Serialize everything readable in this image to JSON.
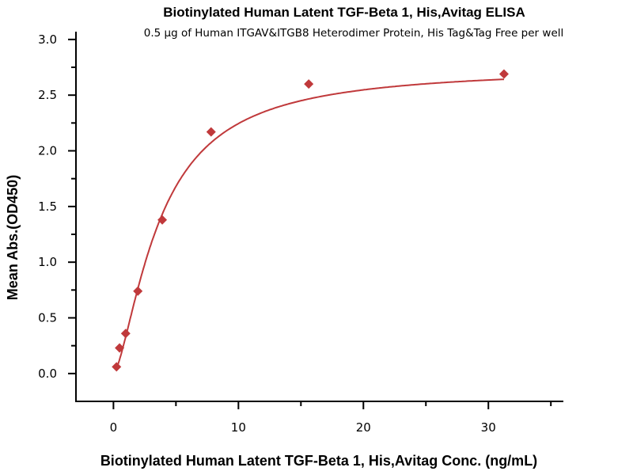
{
  "chart_data": {
    "type": "scatter",
    "title": "Biotinylated Human Latent TGF-Beta 1, His,Avitag ELISA",
    "subtitle": "0.5 µg of Human ITGAV&ITGB8 Heterodimer Protein, His Tag&Tag Free per well",
    "xlabel": "Biotinylated Human Latent TGF-Beta 1, His,Avitag Conc. (ng/mL)",
    "ylabel": "Mean Abs.(OD450)",
    "xlim": [
      -3,
      36
    ],
    "ylim": [
      -0.25,
      3.07
    ],
    "xticks": [
      "0",
      "10",
      "20",
      "30"
    ],
    "xtick_values": [
      0,
      10,
      20,
      30
    ],
    "xminor_values": [
      5,
      15,
      25,
      35
    ],
    "yticks": [
      "0.0",
      "0.5",
      "1.0",
      "1.5",
      "2.0",
      "2.5",
      "3.0"
    ],
    "ytick_values": [
      0,
      0.5,
      1.0,
      1.5,
      2.0,
      2.5,
      3.0
    ],
    "grid": false,
    "series": [
      {
        "name": "OD450",
        "color": "#c0393b",
        "marker": "diamond",
        "x": [
          0.244,
          0.488,
          0.977,
          1.953,
          3.906,
          7.813,
          15.625,
          31.25
        ],
        "y": [
          0.06,
          0.23,
          0.36,
          0.74,
          1.38,
          2.17,
          2.6,
          2.69
        ]
      }
    ],
    "fit": {
      "type": "4PL",
      "bottom": 0,
      "top": 2.75,
      "ec50": 3.7,
      "hill": 1.5
    }
  }
}
